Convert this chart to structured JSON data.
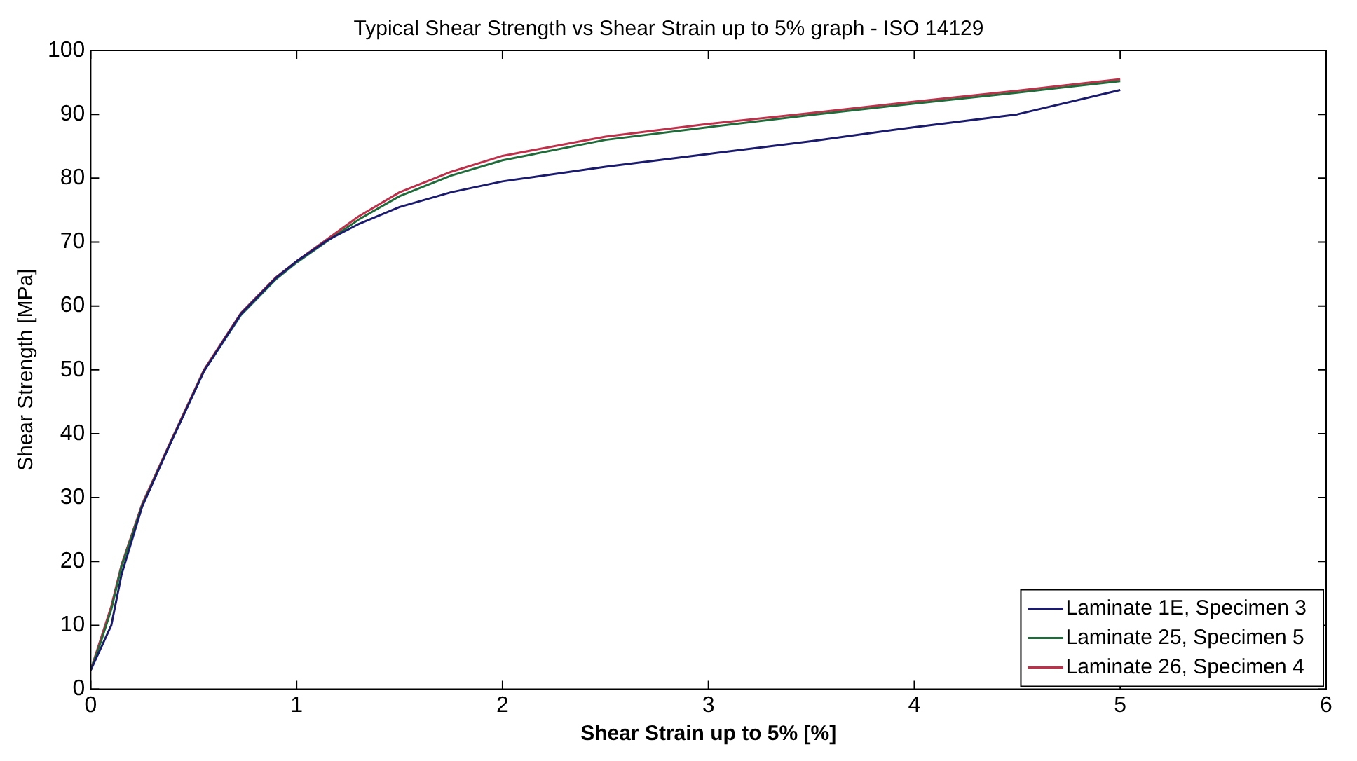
{
  "chart_data": {
    "type": "line",
    "title": "Typical Shear Strength vs Shear Strain up to 5% graph - ISO 14129",
    "xlabel": "Shear Strain up to 5% [%]",
    "ylabel": "Shear Strength [MPa]",
    "x": [
      0,
      0.05,
      0.1,
      0.15,
      0.25,
      0.38,
      0.55,
      0.73,
      0.9,
      1,
      1.15,
      1.3,
      1.5,
      1.75,
      2,
      2.5,
      3,
      3.5,
      4,
      4.5,
      5
    ],
    "series": [
      {
        "name": "Laminate 1E, Specimen 3",
        "color": "#1a1a6e",
        "values": [
          3,
          6.5,
          10,
          18,
          28.6,
          38,
          49.8,
          58.8,
          64.4,
          67,
          70.3,
          72.8,
          75.5,
          77.8,
          79.5,
          81.8,
          83.8,
          85.8,
          88,
          90,
          93.8
        ]
      },
      {
        "name": "Laminate 25, Specimen 5",
        "color": "#1f6b3a",
        "values": [
          3,
          7.5,
          12.5,
          19.3,
          28.8,
          38,
          49.8,
          58.6,
          64.2,
          66.8,
          70.2,
          73.5,
          77.2,
          80.4,
          82.8,
          86,
          88,
          89.9,
          91.7,
          93.4,
          95.2
        ]
      },
      {
        "name": "Laminate 26, Specimen 4",
        "color": "#c0304a",
        "values": [
          3,
          8,
          13,
          19.5,
          29,
          38.2,
          50,
          58.9,
          64.5,
          67,
          70.5,
          74,
          77.8,
          81,
          83.5,
          86.5,
          88.5,
          90.2,
          92,
          93.7,
          95.5
        ]
      }
    ],
    "xlim": [
      0,
      6
    ],
    "xticks": [
      0,
      1,
      2,
      3,
      4,
      5,
      6
    ],
    "ylim": [
      0,
      100
    ],
    "yticks": [
      0,
      10,
      20,
      30,
      40,
      50,
      60,
      70,
      80,
      90,
      100
    ],
    "grid": false,
    "legend": "bottom right",
    "marker": "none",
    "line_style": "solid"
  }
}
